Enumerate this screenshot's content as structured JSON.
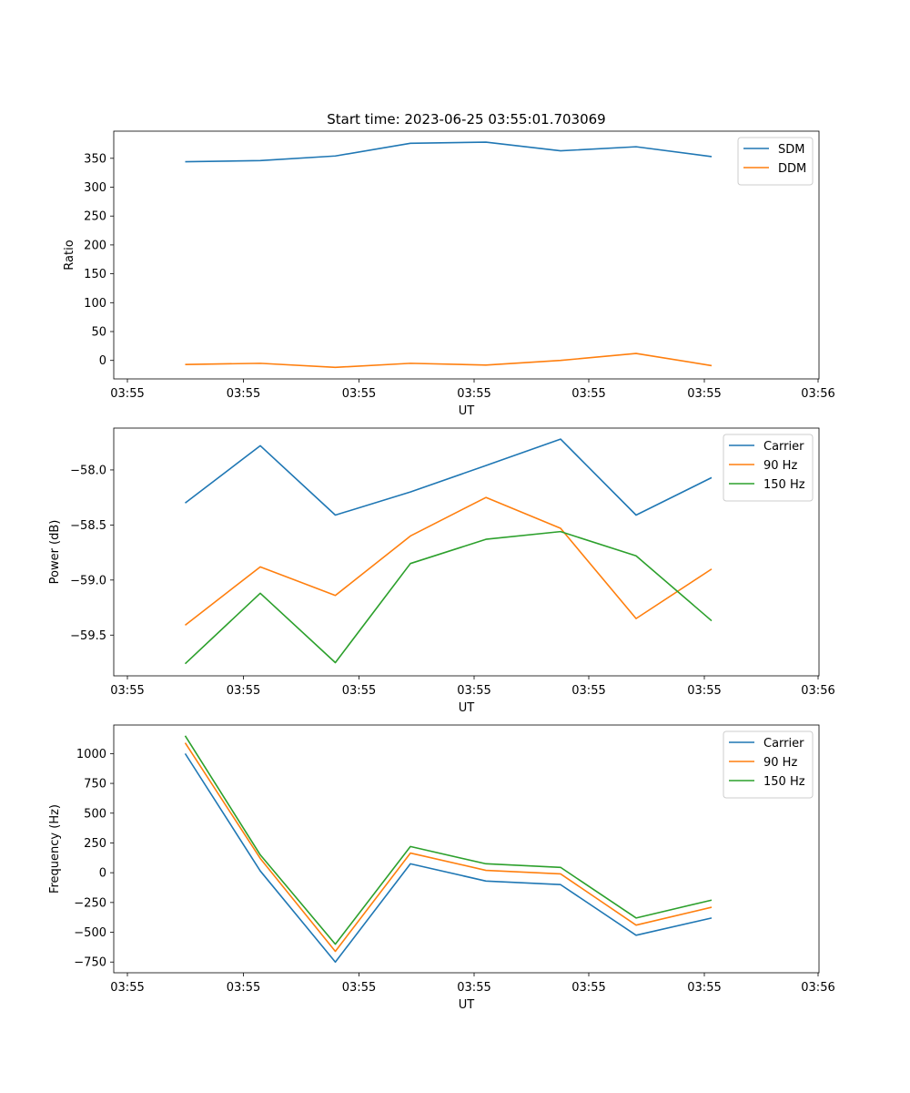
{
  "figure": {
    "title": "Start time: 2023-06-25 03:55:01.703069"
  },
  "chart_data": [
    {
      "type": "line",
      "xlabel": "UT",
      "ylabel": "Ratio",
      "x_tick_labels": [
        "03:55",
        "03:55",
        "03:55",
        "03:55",
        "03:55",
        "03:55",
        "03:56"
      ],
      "x_points": 8,
      "ylim": [
        -32,
        397
      ],
      "y_ticks": [
        0,
        50,
        100,
        150,
        200,
        250,
        300,
        350
      ],
      "legend_position": "top-right",
      "series": [
        {
          "name": "SDM",
          "color": "#1f77b4",
          "values": [
            344,
            346,
            354,
            376,
            378,
            363,
            370,
            353
          ]
        },
        {
          "name": "DDM",
          "color": "#ff7f0e",
          "values": [
            -7,
            -5,
            -12,
            -5,
            -8,
            0,
            12,
            -9
          ]
        }
      ]
    },
    {
      "type": "line",
      "xlabel": "UT",
      "ylabel": "Power (dB)",
      "x_tick_labels": [
        "03:55",
        "03:55",
        "03:55",
        "03:55",
        "03:55",
        "03:55",
        "03:56"
      ],
      "x_points": 8,
      "ylim": [
        -59.87,
        -57.62
      ],
      "y_ticks": [
        -59.5,
        -59.0,
        -58.5,
        -58.0
      ],
      "legend_position": "top-right",
      "series": [
        {
          "name": "Carrier",
          "color": "#1f77b4",
          "values": [
            -58.3,
            -57.78,
            -58.41,
            -58.2,
            -57.96,
            -57.72,
            -58.41,
            -58.07
          ]
        },
        {
          "name": "90 Hz",
          "color": "#ff7f0e",
          "values": [
            -59.41,
            -58.88,
            -59.14,
            -58.6,
            -58.25,
            -58.53,
            -59.35,
            -58.9
          ]
        },
        {
          "name": "150 Hz",
          "color": "#2ca02c",
          "values": [
            -59.76,
            -59.12,
            -59.75,
            -58.85,
            -58.63,
            -58.56,
            -58.78,
            -59.37
          ]
        }
      ]
    },
    {
      "type": "line",
      "xlabel": "UT",
      "ylabel": "Frequency (Hz)",
      "x_tick_labels": [
        "03:55",
        "03:55",
        "03:55",
        "03:55",
        "03:55",
        "03:55",
        "03:56"
      ],
      "x_points": 8,
      "ylim": [
        -840,
        1240
      ],
      "y_ticks": [
        -750,
        -500,
        -250,
        0,
        250,
        500,
        750,
        1000
      ],
      "legend_position": "top-right",
      "series": [
        {
          "name": "Carrier",
          "color": "#1f77b4",
          "values": [
            1000,
            15,
            -750,
            75,
            -70,
            -100,
            -525,
            -380
          ]
        },
        {
          "name": "90 Hz",
          "color": "#ff7f0e",
          "values": [
            1090,
            120,
            -660,
            165,
            20,
            -10,
            -440,
            -290
          ]
        },
        {
          "name": "150 Hz",
          "color": "#2ca02c",
          "values": [
            1150,
            150,
            -600,
            220,
            75,
            45,
            -380,
            -230
          ]
        }
      ]
    }
  ]
}
